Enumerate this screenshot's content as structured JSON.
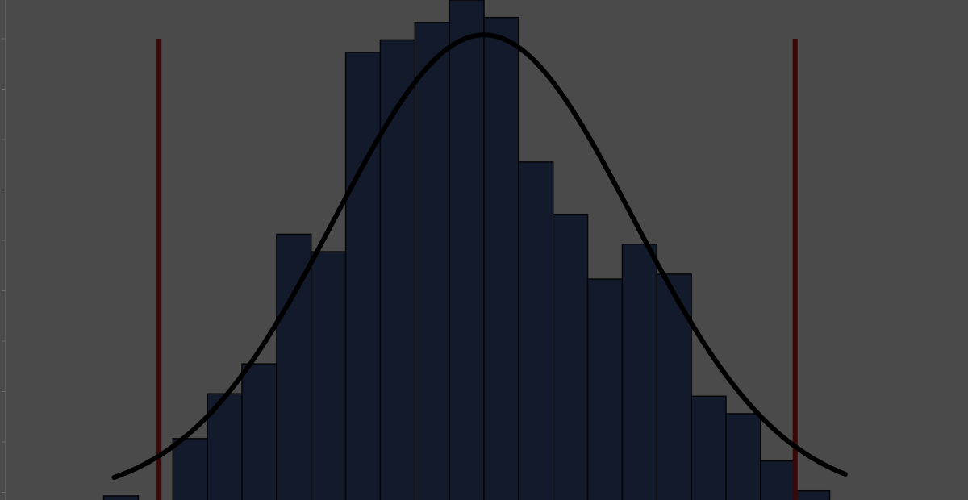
{
  "chart_data": {
    "type": "bar",
    "subtype": "histogram",
    "grid": false,
    "legend": "none",
    "xlim": [
      0,
      28
    ],
    "ylim": [
      0,
      100
    ],
    "bins": [
      {
        "x0": 3,
        "x1": 4,
        "value": 0.5
      },
      {
        "x0": 4,
        "x1": 5,
        "value": 0
      },
      {
        "x0": 5,
        "x1": 6,
        "value": 12
      },
      {
        "x0": 6,
        "x1": 7,
        "value": 21
      },
      {
        "x0": 7,
        "x1": 8,
        "value": 27
      },
      {
        "x0": 8,
        "x1": 9,
        "value": 53
      },
      {
        "x0": 9,
        "x1": 10,
        "value": 49.5
      },
      {
        "x0": 10,
        "x1": 11,
        "value": 89.5
      },
      {
        "x0": 11,
        "x1": 12,
        "value": 92
      },
      {
        "x0": 12,
        "x1": 13,
        "value": 95.5
      },
      {
        "x0": 13,
        "x1": 14,
        "value": 100
      },
      {
        "x0": 14,
        "x1": 15,
        "value": 96.5
      },
      {
        "x0": 15,
        "x1": 16,
        "value": 67.5
      },
      {
        "x0": 16,
        "x1": 17,
        "value": 57
      },
      {
        "x0": 17,
        "x1": 18,
        "value": 44
      },
      {
        "x0": 18,
        "x1": 19,
        "value": 51
      },
      {
        "x0": 19,
        "x1": 20,
        "value": 45
      },
      {
        "x0": 20,
        "x1": 21,
        "value": 20.5
      },
      {
        "x0": 21,
        "x1": 22,
        "value": 17
      },
      {
        "x0": 22,
        "x1": 23,
        "value": 7.5
      },
      {
        "x0": 23,
        "x1": 24,
        "value": 1.5
      }
    ],
    "fit_curve": {
      "type": "normal",
      "mean": 14,
      "sd": 4.3,
      "peak": 93,
      "color": "#000000"
    },
    "reference_lines": [
      {
        "x": 4.6,
        "color": "#3a0808"
      },
      {
        "x": 23.0,
        "color": "#3a0808"
      }
    ],
    "colors": {
      "bar_fill": "#131a2b",
      "bar_stroke": "#050507",
      "background": "#4a4a4a",
      "axis": "#6a6a6a"
    }
  }
}
